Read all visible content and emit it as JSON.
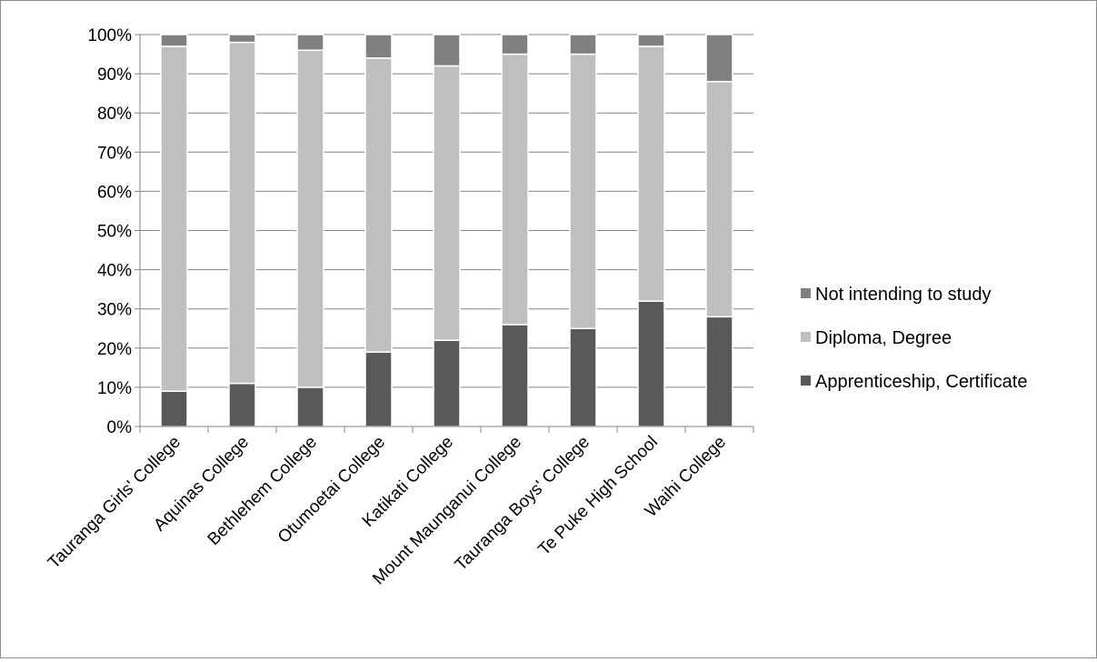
{
  "chart_data": {
    "type": "bar",
    "stacked": true,
    "categories": [
      "Tauranga Girls' College",
      "Aquinas College",
      "Bethlehem College",
      "Otumoetai College",
      "Katikati College",
      "Mount Maunganui College",
      "Tauranga Boys' College",
      "Te Puke High School",
      "Waihi College"
    ],
    "series": [
      {
        "name": "Apprenticeship, Certificate",
        "color": "#595959",
        "values": [
          9,
          11,
          10,
          19,
          22,
          26,
          25,
          32,
          28
        ]
      },
      {
        "name": "Diploma, Degree",
        "color": "#bfbfbf",
        "values": [
          88,
          87,
          86,
          75,
          70,
          69,
          70,
          65,
          60
        ]
      },
      {
        "name": "Not intending to study",
        "color": "#808080",
        "values": [
          3,
          2,
          4,
          6,
          8,
          5,
          5,
          3,
          12
        ]
      }
    ],
    "ylim": [
      0,
      100
    ],
    "yticks": [
      "0%",
      "10%",
      "20%",
      "30%",
      "40%",
      "50%",
      "60%",
      "70%",
      "80%",
      "90%",
      "100%"
    ],
    "grid": true,
    "legend_position": "right",
    "legend_order": [
      "Not intending to study",
      "Diploma, Degree",
      "Apprenticeship, Certificate"
    ]
  }
}
